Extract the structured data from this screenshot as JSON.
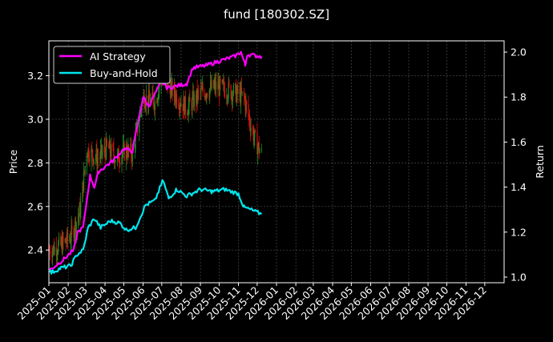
{
  "chart_data": {
    "type": "line",
    "title": "fund [180302.SZ]",
    "xlabel": "",
    "ylabel_left": "Price",
    "ylabel_right": "Return",
    "x_ticks": [
      "2025-01",
      "2025-02",
      "2025-03",
      "2025-04",
      "2025-05",
      "2025-06",
      "2025-07",
      "2025-08",
      "2025-09",
      "2025-10",
      "2025-11",
      "2025-12",
      "2026-01",
      "2026-02",
      "2026-03",
      "2026-04",
      "2026-05",
      "2026-06",
      "2026-07",
      "2026-08",
      "2026-09",
      "2026-10",
      "2026-11",
      "2026-12"
    ],
    "y_left_ticks": [
      2.4,
      2.6,
      2.8,
      3.0,
      3.2
    ],
    "y_left_range": [
      2.25,
      3.36
    ],
    "y_right_ticks": [
      1.0,
      1.2,
      1.4,
      1.6,
      1.8,
      2.0
    ],
    "y_right_range": [
      0.975,
      2.05
    ],
    "x_range": [
      "2025-01-01",
      "2027-01-01"
    ],
    "grid": true,
    "legend_position": "top-left",
    "colors": {
      "ai_strategy": "#ff00ff",
      "buy_and_hold": "#00e5ee",
      "candle_up": "#228b22",
      "candle_down": "#dd1111",
      "background": "#000000",
      "grid": "#555555"
    },
    "candles_range": [
      "2025-01-02",
      "2025-12-08"
    ],
    "price_trend": [
      {
        "x": "2025-01-02",
        "y": 2.4
      },
      {
        "x": "2025-01-20",
        "y": 2.42
      },
      {
        "x": "2025-02-05",
        "y": 2.46
      },
      {
        "x": "2025-02-20",
        "y": 2.58
      },
      {
        "x": "2025-03-03",
        "y": 2.86
      },
      {
        "x": "2025-03-20",
        "y": 2.82
      },
      {
        "x": "2025-04-05",
        "y": 2.87
      },
      {
        "x": "2025-04-20",
        "y": 2.82
      },
      {
        "x": "2025-05-05",
        "y": 2.86
      },
      {
        "x": "2025-05-15",
        "y": 2.84
      },
      {
        "x": "2025-06-01",
        "y": 3.1
      },
      {
        "x": "2025-06-20",
        "y": 3.08
      },
      {
        "x": "2025-07-01",
        "y": 3.2
      },
      {
        "x": "2025-07-20",
        "y": 3.12
      },
      {
        "x": "2025-08-10",
        "y": 3.05
      },
      {
        "x": "2025-09-01",
        "y": 3.12
      },
      {
        "x": "2025-09-25",
        "y": 3.15
      },
      {
        "x": "2025-10-20",
        "y": 3.13
      },
      {
        "x": "2025-11-10",
        "y": 3.1
      },
      {
        "x": "2025-11-20",
        "y": 2.98
      },
      {
        "x": "2025-11-28",
        "y": 2.9
      },
      {
        "x": "2025-12-08",
        "y": 2.84
      }
    ],
    "series": [
      {
        "name": "AI Strategy",
        "axis": "right",
        "points": [
          {
            "x": "2025-01-02",
            "y": 1.03
          },
          {
            "x": "2025-01-25",
            "y": 1.08
          },
          {
            "x": "2025-02-10",
            "y": 1.12
          },
          {
            "x": "2025-02-16",
            "y": 1.2
          },
          {
            "x": "2025-02-25",
            "y": 1.22
          },
          {
            "x": "2025-03-08",
            "y": 1.45
          },
          {
            "x": "2025-03-15",
            "y": 1.4
          },
          {
            "x": "2025-03-22",
            "y": 1.47
          },
          {
            "x": "2025-04-15",
            "y": 1.52
          },
          {
            "x": "2025-05-01",
            "y": 1.57
          },
          {
            "x": "2025-05-15",
            "y": 1.56
          },
          {
            "x": "2025-06-01",
            "y": 1.8
          },
          {
            "x": "2025-06-10",
            "y": 1.76
          },
          {
            "x": "2025-07-01",
            "y": 1.87
          },
          {
            "x": "2025-07-10",
            "y": 1.84
          },
          {
            "x": "2025-08-10",
            "y": 1.86
          },
          {
            "x": "2025-08-20",
            "y": 1.93
          },
          {
            "x": "2025-09-10",
            "y": 1.94
          },
          {
            "x": "2025-10-01",
            "y": 1.96
          },
          {
            "x": "2025-10-25",
            "y": 1.98
          },
          {
            "x": "2025-11-05",
            "y": 2.0
          },
          {
            "x": "2025-11-12",
            "y": 1.94
          },
          {
            "x": "2025-11-15",
            "y": 1.99
          },
          {
            "x": "2025-12-08",
            "y": 1.98
          }
        ]
      },
      {
        "name": "Buy-and-Hold",
        "axis": "right",
        "points": [
          {
            "x": "2025-01-02",
            "y": 1.03
          },
          {
            "x": "2025-01-05",
            "y": 1.02
          },
          {
            "x": "2025-01-20",
            "y": 1.04
          },
          {
            "x": "2025-02-05",
            "y": 1.05
          },
          {
            "x": "2025-02-15",
            "y": 1.1
          },
          {
            "x": "2025-02-25",
            "y": 1.12
          },
          {
            "x": "2025-03-05",
            "y": 1.22
          },
          {
            "x": "2025-03-15",
            "y": 1.26
          },
          {
            "x": "2025-03-25",
            "y": 1.22
          },
          {
            "x": "2025-04-10",
            "y": 1.25
          },
          {
            "x": "2025-04-25",
            "y": 1.24
          },
          {
            "x": "2025-05-05",
            "y": 1.21
          },
          {
            "x": "2025-05-20",
            "y": 1.22
          },
          {
            "x": "2025-06-05",
            "y": 1.32
          },
          {
            "x": "2025-06-20",
            "y": 1.34
          },
          {
            "x": "2025-07-03",
            "y": 1.43
          },
          {
            "x": "2025-07-12",
            "y": 1.35
          },
          {
            "x": "2025-07-25",
            "y": 1.39
          },
          {
            "x": "2025-08-10",
            "y": 1.36
          },
          {
            "x": "2025-09-01",
            "y": 1.39
          },
          {
            "x": "2025-09-20",
            "y": 1.38
          },
          {
            "x": "2025-10-10",
            "y": 1.39
          },
          {
            "x": "2025-11-01",
            "y": 1.37
          },
          {
            "x": "2025-11-10",
            "y": 1.31
          },
          {
            "x": "2025-11-20",
            "y": 1.3
          },
          {
            "x": "2025-12-08",
            "y": 1.28
          }
        ]
      }
    ]
  }
}
